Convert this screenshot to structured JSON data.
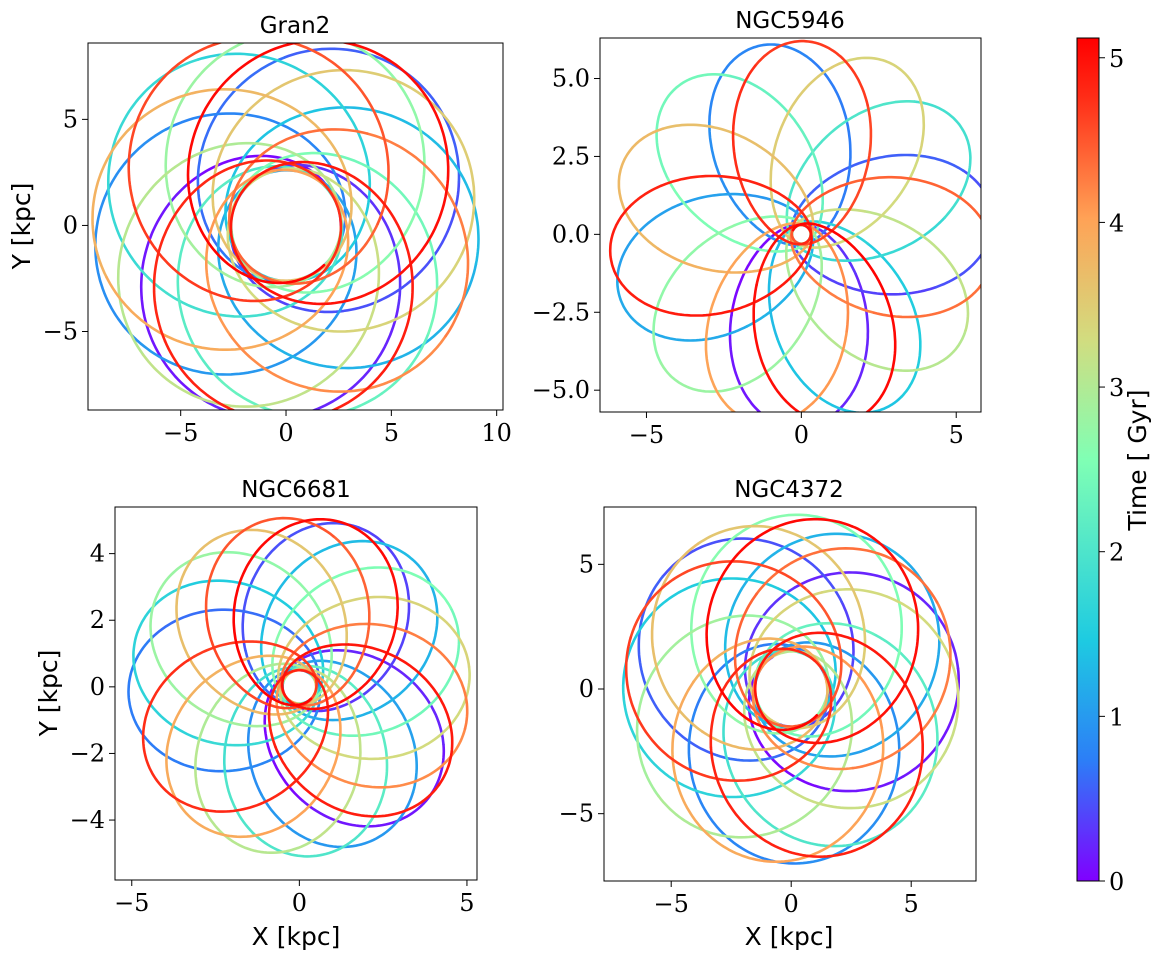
{
  "chart_data": [
    {
      "type": "line",
      "title": "Gran2",
      "xlabel": "",
      "ylabel": "Y [kpc]",
      "xlim": [
        -9.4,
        10.3
      ],
      "ylim": [
        -8.7,
        8.6
      ],
      "xticks": [
        -5,
        0,
        5,
        10
      ],
      "xtick_labels": [
        "−5",
        "0",
        "5",
        "10"
      ],
      "yticks": [
        -5,
        0,
        5
      ],
      "ytick_labels": [
        "−5",
        "0",
        "5"
      ],
      "orbit": {
        "apocenter_kpc": 9.2,
        "pericenter_kpc": 2.6,
        "t_min_gyr": 0,
        "t_max_gyr": 5.1,
        "loops": 14,
        "precession_deg": 151,
        "squash": 0.88
      }
    },
    {
      "type": "line",
      "title": "NGC5946",
      "xlabel": "",
      "ylabel": "",
      "xlim": [
        -6.5,
        5.8
      ],
      "ylim": [
        -5.7,
        6.3
      ],
      "xticks": [
        -5,
        0,
        5
      ],
      "xtick_labels": [
        "−5",
        "0",
        "5"
      ],
      "yticks": [
        -5.0,
        -2.5,
        0.0,
        2.5,
        5.0
      ],
      "ytick_labels": [
        "−5.0",
        "−2.5",
        "0.0",
        "2.5",
        "5.0"
      ],
      "orbit": {
        "apocenter_kpc": 6.2,
        "pericenter_kpc": 0.3,
        "t_min_gyr": 0,
        "t_max_gyr": 5.1,
        "loops": 16,
        "precession_deg": 97,
        "squash": 0.74
      }
    },
    {
      "type": "line",
      "title": "NGC6681",
      "xlabel": "X [kpc]",
      "ylabel": "Y [kpc]",
      "xlim": [
        -5.5,
        5.3
      ],
      "ylim": [
        -5.8,
        5.4
      ],
      "xticks": [
        -5,
        0,
        5
      ],
      "xtick_labels": [
        "−5",
        "0",
        "5"
      ],
      "yticks": [
        -4,
        -2,
        0,
        2,
        4
      ],
      "ytick_labels": [
        "−4",
        "−2",
        "0",
        "2",
        "4"
      ],
      "orbit": {
        "apocenter_kpc": 5.1,
        "pericenter_kpc": 0.5,
        "t_min_gyr": 0,
        "t_max_gyr": 5.1,
        "loops": 18,
        "precession_deg": 113,
        "squash": 0.86
      }
    },
    {
      "type": "line",
      "title": "NGC4372",
      "xlabel": "X [kpc]",
      "ylabel": "",
      "xlim": [
        -7.8,
        7.7
      ],
      "ylim": [
        -7.7,
        7.3
      ],
      "xticks": [
        -5,
        0,
        5
      ],
      "xtick_labels": [
        "−5",
        "0",
        "5"
      ],
      "yticks": [
        -5,
        0,
        5
      ],
      "ytick_labels": [
        "−5",
        "0",
        "5"
      ],
      "orbit": {
        "apocenter_kpc": 7.0,
        "pericenter_kpc": 1.5,
        "t_min_gyr": 0,
        "t_max_gyr": 5.1,
        "loops": 15,
        "precession_deg": 133,
        "squash": 0.93
      }
    }
  ],
  "colorbar": {
    "label": "Time [ Gyr]",
    "vmin": 0,
    "vmax": 5.12,
    "ticks": [
      0,
      1,
      2,
      3,
      4,
      5
    ],
    "tick_labels": [
      "0",
      "1",
      "2",
      "3",
      "4",
      "5"
    ],
    "colormap": "rainbow",
    "colors": [
      "#8000ff",
      "#2c7ef7",
      "#1ecbe1",
      "#80ffb4",
      "#d2dc7f",
      "#ffa256",
      "#ff2d17",
      "#ff0000"
    ]
  }
}
